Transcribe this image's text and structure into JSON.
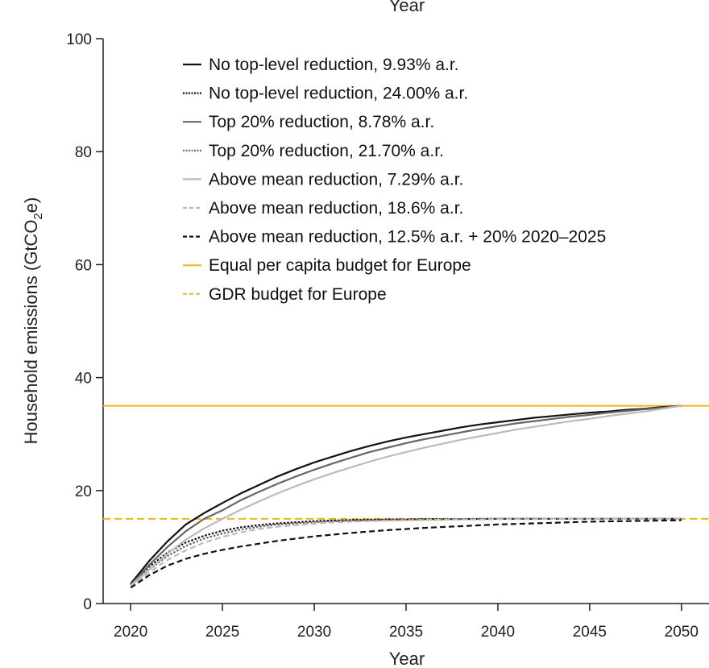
{
  "chart_data": {
    "type": "line",
    "top_label": "Year",
    "xlabel": "Year",
    "ylabel_main": "Household emissions (GtCO",
    "ylabel_sub": "2",
    "ylabel_end": "e)",
    "xlim": [
      2018.5,
      2051.5
    ],
    "ylim": [
      0,
      100
    ],
    "xticks": [
      2020,
      2025,
      2030,
      2035,
      2040,
      2045,
      2050
    ],
    "yticks": [
      0,
      20,
      40,
      60,
      80,
      100
    ],
    "x": [
      2020,
      2021,
      2022,
      2023,
      2024,
      2025,
      2026,
      2027,
      2028,
      2029,
      2030,
      2031,
      2032,
      2033,
      2034,
      2035,
      2036,
      2037,
      2038,
      2039,
      2040,
      2041,
      2042,
      2043,
      2044,
      2045,
      2046,
      2047,
      2048,
      2049,
      2050
    ],
    "series": [
      {
        "name": "No top-level reduction, 9.93% a.r.",
        "color": "#111111",
        "dash": "solid",
        "values": [
          3.5,
          7.5,
          11.0,
          14.0,
          16.0,
          17.8,
          19.5,
          21.0,
          22.5,
          23.8,
          25.0,
          26.0,
          27.0,
          27.9,
          28.7,
          29.4,
          30.0,
          30.6,
          31.2,
          31.7,
          32.1,
          32.5,
          32.9,
          33.2,
          33.5,
          33.8,
          34.0,
          34.3,
          34.5,
          34.8,
          35.0
        ]
      },
      {
        "name": "No top-level reduction, 24.00% a.r.",
        "color": "#111111",
        "dash": "dotted",
        "values": [
          3.2,
          6.5,
          9.0,
          10.8,
          12.0,
          12.9,
          13.5,
          13.9,
          14.2,
          14.4,
          14.6,
          14.7,
          14.8,
          14.85,
          14.9,
          14.9,
          14.95,
          14.95,
          14.95,
          15.0,
          15.0,
          15.0,
          15.0,
          15.0,
          15.0,
          15.0,
          15.0,
          15.0,
          15.0,
          15.0,
          15.0
        ]
      },
      {
        "name": "Top 20% reduction, 8.78% a.r.",
        "color": "#666666",
        "dash": "solid",
        "values": [
          3.3,
          6.8,
          10.0,
          12.8,
          15.0,
          16.5,
          18.3,
          19.8,
          21.2,
          22.5,
          23.7,
          24.8,
          25.8,
          26.8,
          27.6,
          28.4,
          29.1,
          29.7,
          30.3,
          30.9,
          31.4,
          31.9,
          32.3,
          32.7,
          33.1,
          33.4,
          33.8,
          34.1,
          34.4,
          34.7,
          35.0
        ]
      },
      {
        "name": "Top 20% reduction, 21.70% a.r.",
        "color": "#666666",
        "dash": "dotted",
        "values": [
          3.1,
          6.0,
          8.4,
          10.2,
          11.5,
          12.4,
          13.1,
          13.6,
          14.0,
          14.2,
          14.4,
          14.55,
          14.65,
          14.75,
          14.8,
          14.85,
          14.9,
          14.9,
          14.95,
          14.95,
          15.0,
          15.0,
          15.0,
          15.0,
          15.0,
          15.0,
          15.0,
          15.0,
          15.0,
          15.0,
          15.0
        ]
      },
      {
        "name": "Above mean reduction, 7.29% a.r.",
        "color": "#bbbbbb",
        "dash": "solid",
        "values": [
          3.2,
          6.0,
          8.8,
          11.3,
          13.3,
          15.0,
          16.6,
          18.1,
          19.5,
          20.8,
          22.0,
          23.1,
          24.1,
          25.1,
          26.0,
          26.8,
          27.6,
          28.3,
          29.0,
          29.6,
          30.2,
          30.8,
          31.3,
          31.8,
          32.3,
          32.7,
          33.2,
          33.6,
          34.0,
          34.5,
          35.0
        ]
      },
      {
        "name": "Above mean reduction, 18.6% a.r.",
        "color": "#bbbbbb",
        "dash": "dashed",
        "values": [
          3.0,
          5.5,
          7.7,
          9.4,
          10.8,
          11.8,
          12.6,
          13.2,
          13.6,
          13.9,
          14.15,
          14.35,
          14.5,
          14.6,
          14.7,
          14.75,
          14.8,
          14.85,
          14.9,
          14.9,
          14.95,
          14.95,
          14.95,
          15.0,
          15.0,
          15.0,
          15.0,
          15.0,
          15.0,
          15.0,
          15.0
        ]
      },
      {
        "name": "Above mean reduction, 12.5% a.r. + 20% 2020–2025",
        "color": "#111111",
        "dash": "dashed",
        "values": [
          2.8,
          5.0,
          6.7,
          7.9,
          8.8,
          9.5,
          10.1,
          10.6,
          11.1,
          11.5,
          11.9,
          12.2,
          12.5,
          12.75,
          13.0,
          13.2,
          13.4,
          13.55,
          13.7,
          13.85,
          14.0,
          14.1,
          14.2,
          14.3,
          14.4,
          14.5,
          14.55,
          14.6,
          14.65,
          14.7,
          14.75
        ]
      }
    ],
    "reference_lines": [
      {
        "name": "Equal per capita budget for Europe",
        "value": 35,
        "color": "#f0b41c",
        "dash": "solid"
      },
      {
        "name": "GDR budget for Europe",
        "value": 15,
        "color": "#f0b41c",
        "dash": "dashed"
      }
    ],
    "legend_position": "top-center"
  }
}
